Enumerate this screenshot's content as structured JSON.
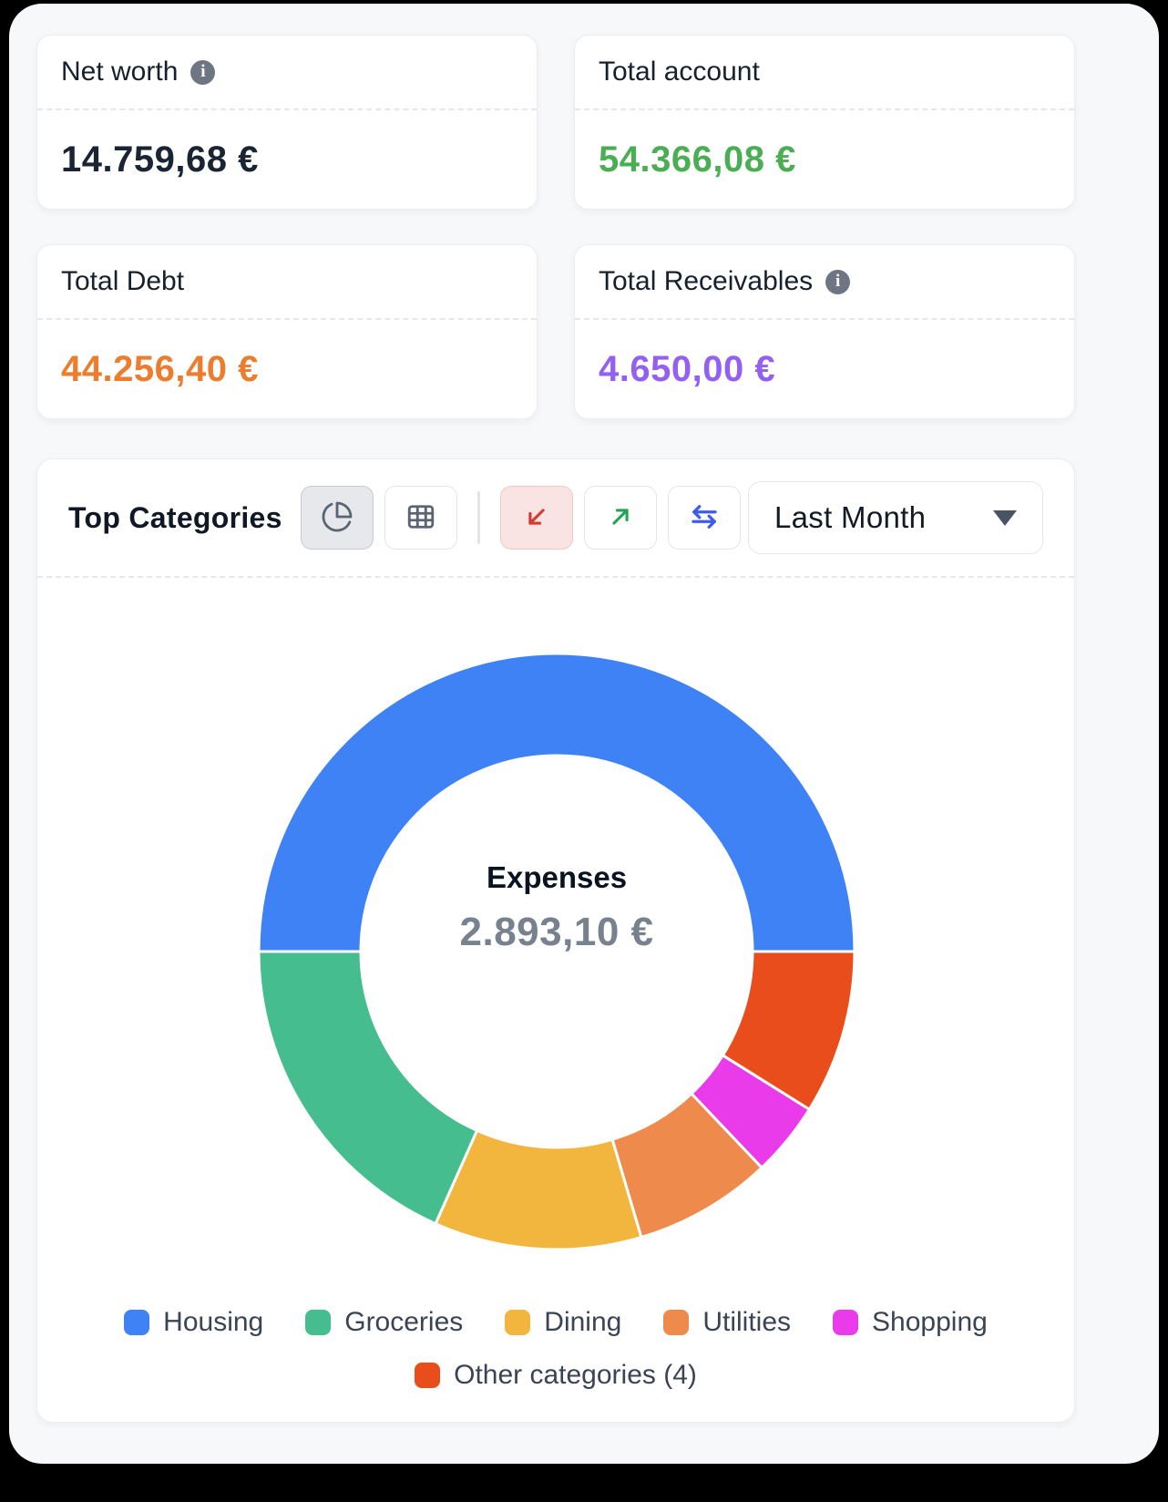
{
  "stat_cards": [
    {
      "id": "net_worth",
      "title": "Net worth",
      "has_info_icon": true,
      "value": "14.759,68 €",
      "value_color": "#1A2433"
    },
    {
      "id": "total_account",
      "title": "Total account",
      "has_info_icon": false,
      "value": "54.366,08 €",
      "value_color": "#4BAE54"
    },
    {
      "id": "total_debt",
      "title": "Total Debt",
      "has_info_icon": false,
      "value": "44.256,40 €",
      "value_color": "#EC7D2E"
    },
    {
      "id": "total_receivables",
      "title": "Total Receivables",
      "has_info_icon": true,
      "value": "4.650,00 €",
      "value_color": "#9360F2"
    }
  ],
  "top_categories": {
    "title": "Top Categories",
    "view_toggles": [
      {
        "name": "pie-view",
        "active": true
      },
      {
        "name": "table-view",
        "active": false
      }
    ],
    "flow_filters": [
      {
        "name": "expenses",
        "icon": "arrow-down-left",
        "color": "#D43A2F",
        "active": true
      },
      {
        "name": "income",
        "icon": "arrow-up-right",
        "color": "#23A455",
        "active": false
      },
      {
        "name": "transfers",
        "icon": "swap-left-right",
        "color": "#3D5BF0",
        "active": false
      }
    ],
    "period_selector": {
      "value": "Last Month"
    }
  },
  "chart_data": {
    "type": "pie",
    "subtype": "donut",
    "title": "Top Categories",
    "center_label": "Expenses",
    "center_value": "2.893,10 €",
    "total_eur": 2893.1,
    "start_angle_deg": 270,
    "clockwise": true,
    "legend_position": "bottom",
    "segments": [
      {
        "label": "Housing",
        "color": "#3E82F5",
        "percent": 50.0,
        "angle_deg": 180.0,
        "value_eur_est": 1446.55
      },
      {
        "label": "Other categories (4)",
        "color": "#E94D1B",
        "percent": 8.9,
        "angle_deg": 32.0,
        "value_eur_est": 257.55
      },
      {
        "label": "Shopping",
        "color": "#E93BE9",
        "percent": 4.0,
        "angle_deg": 14.5,
        "value_eur_est": 115.7
      },
      {
        "label": "Utilities",
        "color": "#EE8A4B",
        "percent": 7.5,
        "angle_deg": 27.0,
        "value_eur_est": 217.0
      },
      {
        "label": "Dining",
        "color": "#F2B63E",
        "percent": 11.3,
        "angle_deg": 40.5,
        "value_eur_est": 326.9
      },
      {
        "label": "Groceries",
        "color": "#46BD8F",
        "percent": 18.3,
        "angle_deg": 66.0,
        "value_eur_est": 529.4
      }
    ],
    "legend_rows": [
      [
        "Housing",
        "Groceries",
        "Dining",
        "Utilities",
        "Shopping"
      ],
      [
        "Other categories (4)"
      ]
    ]
  }
}
